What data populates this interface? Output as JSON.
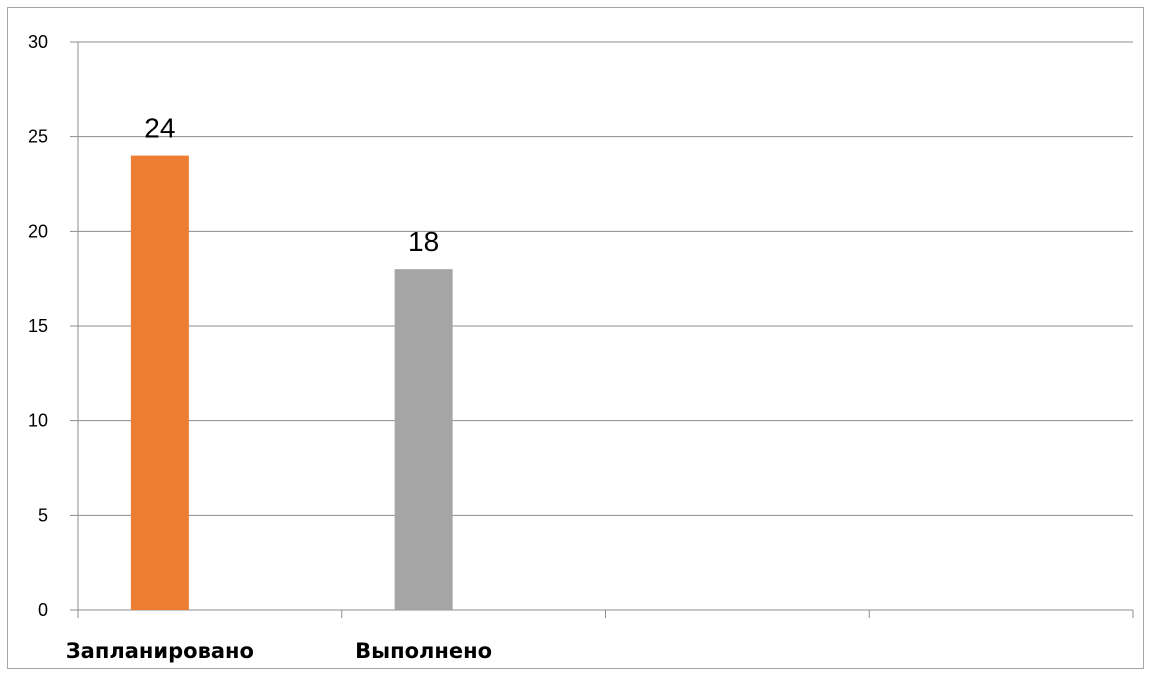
{
  "chart_data": {
    "type": "bar",
    "categories": [
      "Запланировано",
      "Выполнено",
      "",
      ""
    ],
    "values": [
      24,
      18,
      null,
      null
    ],
    "colors": [
      "#ed7d31",
      "#a5a5a5"
    ],
    "ylim": [
      0,
      30
    ],
    "yticks": [
      0,
      5,
      10,
      15,
      20,
      25,
      30
    ],
    "grid": true,
    "title": "",
    "xlabel": "",
    "ylabel": ""
  }
}
